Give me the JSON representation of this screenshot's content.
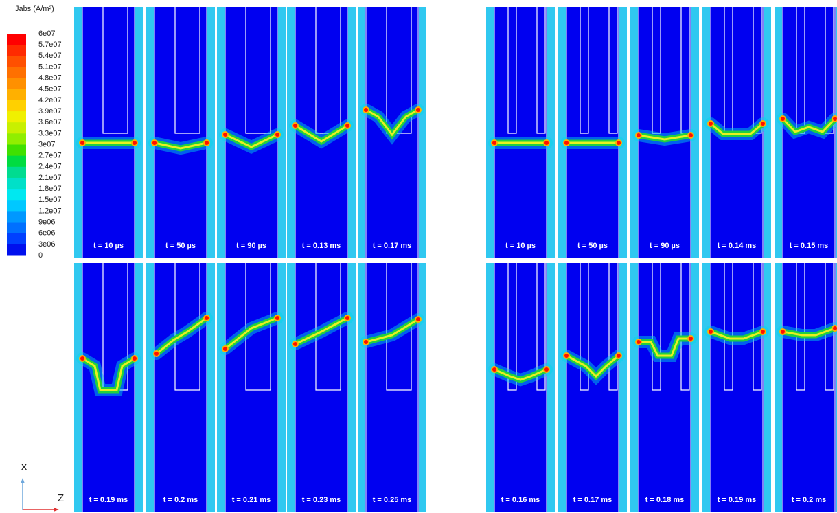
{
  "legend": {
    "title": "Jabs (A/m²)",
    "labels": [
      "6e07",
      "5.7e07",
      "5.4e07",
      "5.1e07",
      "4.8e07",
      "4.5e07",
      "4.2e07",
      "3.9e07",
      "3.6e07",
      "3.3e07",
      "3e07",
      "2.7e07",
      "2.4e07",
      "2.1e07",
      "1.8e07",
      "1.5e07",
      "1.2e07",
      "9e06",
      "6e06",
      "3e06",
      "0"
    ]
  },
  "axes": {
    "x": "X",
    "z": "Z"
  },
  "panels": [
    {
      "label": "t = 10 µs"
    },
    {
      "label": "t = 50 µs"
    },
    {
      "label": "t = 90 µs"
    },
    {
      "label": "t = 0.13 ms"
    },
    {
      "label": "t = 0.17 ms"
    },
    {
      "label": "t = 0.19 ms"
    },
    {
      "label": "t = 0.2 ms"
    },
    {
      "label": "t = 0.21 ms"
    },
    {
      "label": "t = 0.23 ms"
    },
    {
      "label": "t = 0.25 ms"
    },
    {
      "label": "t = 10 µs"
    },
    {
      "label": "t = 50 µs"
    },
    {
      "label": "t = 90 µs"
    },
    {
      "label": "t = 0.14 ms"
    },
    {
      "label": "t = 0.15 ms"
    },
    {
      "label": "t = 0.16 ms"
    },
    {
      "label": "t = 0.17 ms"
    },
    {
      "label": "t = 0.18 ms"
    },
    {
      "label": "t = 0.19 ms"
    },
    {
      "label": "t = 0.2 ms"
    }
  ]
}
